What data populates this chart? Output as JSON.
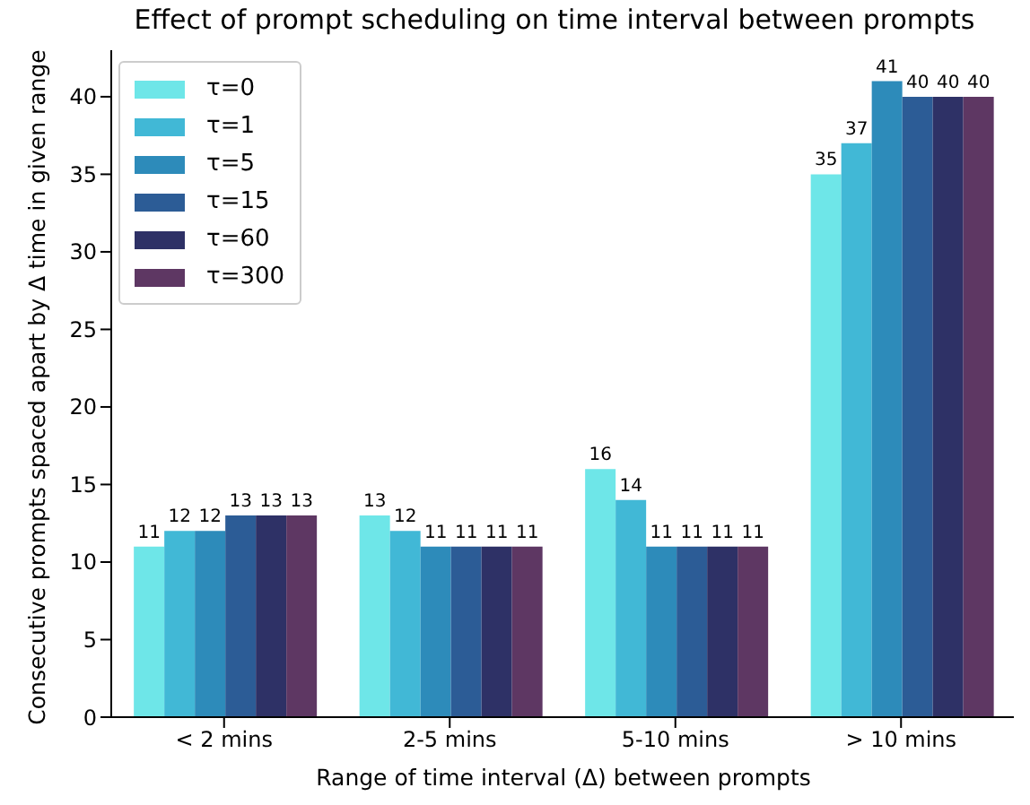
{
  "chart_data": {
    "type": "bar",
    "title": "Effect of prompt scheduling on time interval between prompts",
    "xlabel": "Range of time interval (Δ) between prompts",
    "ylabel": "Consecutive prompts spaced apart by Δ time in given range",
    "categories": [
      "< 2 mins",
      "2-5 mins",
      "5-10 mins",
      "> 10 mins"
    ],
    "series": [
      {
        "name": "τ=0",
        "color": "#6ee6e8",
        "values": [
          11,
          13,
          16,
          35
        ]
      },
      {
        "name": "τ=1",
        "color": "#41b8d6",
        "values": [
          12,
          12,
          14,
          37
        ]
      },
      {
        "name": "τ=5",
        "color": "#2d8bba",
        "values": [
          12,
          11,
          11,
          41
        ]
      },
      {
        "name": "τ=15",
        "color": "#2c5c96",
        "values": [
          13,
          11,
          11,
          40
        ]
      },
      {
        "name": "τ=60",
        "color": "#2e3166",
        "values": [
          13,
          11,
          11,
          40
        ]
      },
      {
        "name": "τ=300",
        "color": "#5e3763",
        "values": [
          13,
          11,
          11,
          40
        ]
      }
    ],
    "ylim": [
      0,
      43
    ],
    "yticks": [
      0,
      5,
      10,
      15,
      20,
      25,
      30,
      35,
      40
    ],
    "grid": false,
    "legend": "top left",
    "data_labels": true
  }
}
